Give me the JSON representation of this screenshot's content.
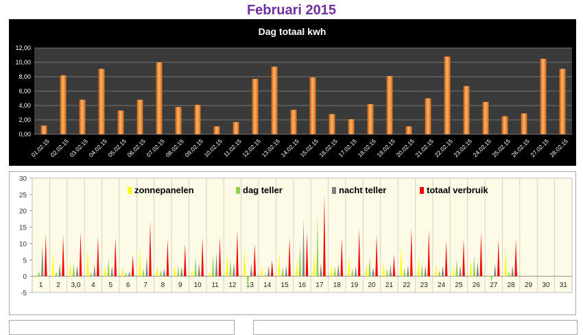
{
  "page": {
    "title": "Februari 2015"
  },
  "colors": {
    "title": "#7030a0",
    "bar": "#f79646",
    "zonnepanelen": "#ffff00",
    "dag_teller": "#92d050",
    "nacht_teller": "#808080",
    "totaal_verbruik": "#ff0000"
  },
  "chart_data": [
    {
      "type": "bar",
      "title": "Dag totaal kwh",
      "categories": [
        "01.02.15",
        "02.02.15",
        "03.02.15",
        "04.02.15",
        "05.02.15",
        "06.02.15",
        "07.02.15",
        "08.02.15",
        "09.02.15",
        "10.02.15",
        "11.02.15",
        "12.02.15",
        "13.02.15",
        "14.02.15",
        "15.02.15",
        "16.02.15",
        "17.02.15",
        "18.02.15",
        "19.02.15",
        "20.02.15",
        "21.02.15",
        "22.02.15",
        "23.02.15",
        "24.02.15",
        "25.02.15",
        "26.02.15",
        "27.02.15",
        "28.02.15"
      ],
      "values": [
        1.2,
        8.2,
        4.8,
        9.1,
        3.3,
        4.8,
        10.0,
        3.8,
        4.1,
        1.1,
        1.7,
        7.7,
        9.4,
        3.4,
        7.9,
        2.8,
        2.1,
        4.2,
        8.1,
        1.1,
        5.0,
        10.8,
        6.7,
        4.5,
        2.5,
        2.9,
        10.5,
        9.1
      ],
      "ylim": [
        0,
        12
      ],
      "yticks": [
        "0,00",
        "2,00",
        "4,00",
        "6,00",
        "8,00",
        "10,00",
        "12,00"
      ],
      "grid": true,
      "background": "#3a3a3a"
    },
    {
      "type": "bar",
      "categories": [
        "1",
        "2",
        "3,0",
        "4",
        "5",
        "6",
        "7",
        "8",
        "9",
        "10",
        "11",
        "12",
        "13",
        "14",
        "15",
        "16",
        "17",
        "18",
        "19",
        "20",
        "21",
        "22",
        "23",
        "24",
        "25",
        "26",
        "27",
        "28",
        "29",
        "30",
        "31"
      ],
      "ylim": [
        -5,
        30
      ],
      "yticks": [
        "-5",
        "0",
        "5",
        "10",
        "15",
        "20",
        "25",
        "30"
      ],
      "legend_position": "top",
      "series": [
        {
          "name": "zonnepanelen",
          "color": "#ffff00",
          "values": [
            0.3,
            7.5,
            4.2,
            8.7,
            3.4,
            2.8,
            9.3,
            3.3,
            3.5,
            2.0,
            1.5,
            7.8,
            8.8,
            3.2,
            7.2,
            4.8,
            7.5,
            3.8,
            6.2,
            3.9,
            4.4,
            9.6,
            6.0,
            4.1,
            3.0,
            4.8,
            0.5,
            8.6,
            null,
            null,
            null
          ]
        },
        {
          "name": "dag teller",
          "color": "#92d050",
          "values": [
            1.5,
            1.4,
            4.0,
            1.2,
            5.7,
            1.2,
            2.4,
            1.9,
            3.2,
            6.3,
            6.5,
            5.2,
            -4.2,
            0.6,
            2.9,
            10.1,
            18.2,
            3.0,
            2.5,
            6.3,
            2.4,
            2.6,
            3.8,
            1.8,
            5.3,
            6.2,
            -1.6,
            1.3,
            null,
            null,
            null
          ]
        },
        {
          "name": "nacht teller",
          "color": "#808080",
          "values": [
            9.8,
            3.8,
            3.5,
            3.8,
            3.3,
            1.5,
            5.9,
            2.4,
            2.9,
            4.0,
            7.2,
            4.2,
            3.9,
            3.2,
            3.3,
            17.3,
            4.0,
            3.8,
            3.2,
            2.8,
            3.6,
            3.3,
            3.2,
            3.3,
            3.3,
            4.4,
            3.8,
            3.2,
            null,
            null,
            null
          ]
        },
        {
          "name": "totaal verbruik",
          "color": "#ff0000",
          "values": [
            12.8,
            12.5,
            13.4,
            12.2,
            11.8,
            6.3,
            16.8,
            11.4,
            9.8,
            11.8,
            11.9,
            14.1,
            9.9,
            4.7,
            11.7,
            13.3,
            25.0,
            11.7,
            14.4,
            12.6,
            6.5,
            14.8,
            14.2,
            10.8,
            11.3,
            13.4,
            11.3,
            11.4,
            null,
            null,
            null
          ]
        }
      ]
    }
  ]
}
